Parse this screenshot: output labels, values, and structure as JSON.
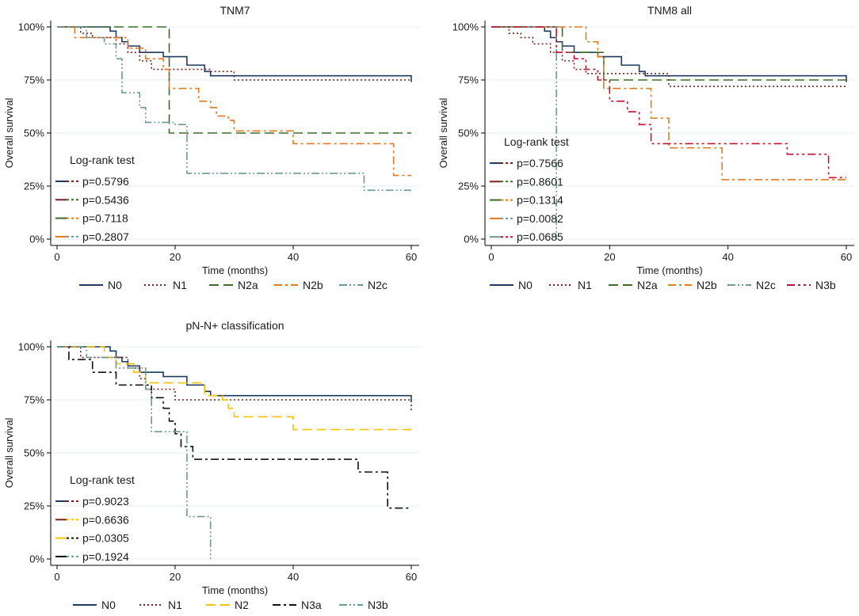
{
  "chart_data": [
    {
      "type": "line",
      "title": "TNM7",
      "xlabel": "Time (months)",
      "ylabel": "Overall survival",
      "xlim": [
        0,
        60
      ],
      "ylim": [
        0,
        100
      ],
      "xticks": [
        "0",
        "20",
        "40",
        "60"
      ],
      "yticks": [
        "0%",
        "25%",
        "50%",
        "75%",
        "100%"
      ],
      "logrank_title": "Log-rank test",
      "logrank": [
        {
          "label": "p=0.5796",
          "series": [
            "N0",
            "N1"
          ]
        },
        {
          "label": "p=0.5436",
          "series": [
            "N1",
            "N2a"
          ]
        },
        {
          "label": "p=0.7118",
          "series": [
            "N2a",
            "N2b"
          ]
        },
        {
          "label": "p=0.2807",
          "series": [
            "N2b",
            "N2c"
          ]
        }
      ],
      "series": [
        {
          "name": "N0",
          "color": "#1f3a5f",
          "dash": "",
          "points": [
            [
              0,
              100
            ],
            [
              8,
              100
            ],
            [
              9,
              98
            ],
            [
              10,
              95
            ],
            [
              11,
              93
            ],
            [
              12,
              91
            ],
            [
              14,
              88
            ],
            [
              18,
              86
            ],
            [
              22,
              82
            ],
            [
              25,
              79
            ],
            [
              26,
              77
            ],
            [
              57,
              77
            ],
            [
              60,
              74
            ]
          ]
        },
        {
          "name": "N1",
          "color": "#7a1f1f",
          "dash": "2,3",
          "points": [
            [
              0,
              100
            ],
            [
              4,
              97
            ],
            [
              6,
              95
            ],
            [
              10,
              92
            ],
            [
              12,
              88
            ],
            [
              14,
              84
            ],
            [
              16,
              80
            ],
            [
              26,
              79
            ],
            [
              30,
              75
            ],
            [
              60,
              75
            ]
          ]
        },
        {
          "name": "N2a",
          "color": "#3d6b2a",
          "dash": "12,6",
          "points": [
            [
              0,
              100
            ],
            [
              19,
              100
            ],
            [
              19,
              50
            ],
            [
              60,
              50
            ]
          ]
        },
        {
          "name": "N2b",
          "color": "#e07b22",
          "dash": "10,4,3,4",
          "points": [
            [
              0,
              100
            ],
            [
              3,
              95
            ],
            [
              10,
              95
            ],
            [
              12,
              90
            ],
            [
              15,
              85
            ],
            [
              18,
              80
            ],
            [
              19,
              71
            ],
            [
              22,
              71
            ],
            [
              24,
              65
            ],
            [
              26,
              62
            ],
            [
              27,
              58
            ],
            [
              29,
              56
            ],
            [
              30,
              51
            ],
            [
              39,
              51
            ],
            [
              40,
              45
            ],
            [
              56,
              45
            ],
            [
              57,
              30
            ],
            [
              60,
              30
            ]
          ]
        },
        {
          "name": "N2c",
          "color": "#6a9a93",
          "dash": "10,3,2,3,2,3",
          "points": [
            [
              0,
              100
            ],
            [
              5,
              95
            ],
            [
              8,
              92
            ],
            [
              10,
              85
            ],
            [
              11,
              69
            ],
            [
              14,
              62
            ],
            [
              15,
              55
            ],
            [
              20,
              54
            ],
            [
              22,
              31
            ],
            [
              51,
              31
            ],
            [
              52,
              23
            ],
            [
              60,
              23
            ]
          ]
        }
      ]
    },
    {
      "type": "line",
      "title": "TNM8 all",
      "xlabel": "Time (months)",
      "ylabel": "Overall survival",
      "xlim": [
        0,
        60
      ],
      "ylim": [
        0,
        100
      ],
      "xticks": [
        "0",
        "20",
        "40",
        "60"
      ],
      "yticks": [
        "0%",
        "25%",
        "50%",
        "75%",
        "100%"
      ],
      "logrank_title": "Log-rank test",
      "logrank": [
        {
          "label": "p=0.7566",
          "series": [
            "N0",
            "N1"
          ]
        },
        {
          "label": "p=0.8601",
          "series": [
            "N1",
            "N2a"
          ]
        },
        {
          "label": "p=0.1314",
          "series": [
            "N2a",
            "N2b"
          ]
        },
        {
          "label": "p=0.0082",
          "series": [
            "N2b",
            "N2c"
          ]
        },
        {
          "label": "p=0.0685",
          "series": [
            "N2c",
            "N3b"
          ]
        }
      ],
      "series": [
        {
          "name": "N0",
          "color": "#1f3a5f",
          "dash": "",
          "points": [
            [
              0,
              100
            ],
            [
              8,
              100
            ],
            [
              9,
              98
            ],
            [
              10,
              95
            ],
            [
              11,
              93
            ],
            [
              12,
              91
            ],
            [
              14,
              88
            ],
            [
              18,
              86
            ],
            [
              22,
              82
            ],
            [
              25,
              79
            ],
            [
              26,
              77
            ],
            [
              57,
              77
            ],
            [
              60,
              74
            ]
          ]
        },
        {
          "name": "N1",
          "color": "#7a1f1f",
          "dash": "2,3",
          "points": [
            [
              0,
              100
            ],
            [
              3,
              97
            ],
            [
              5,
              95
            ],
            [
              7,
              92
            ],
            [
              10,
              88
            ],
            [
              12,
              84
            ],
            [
              14,
              80
            ],
            [
              16,
              78
            ],
            [
              30,
              76
            ],
            [
              30,
              72
            ],
            [
              60,
              72
            ]
          ]
        },
        {
          "name": "N2a",
          "color": "#3d6b2a",
          "dash": "12,6",
          "points": [
            [
              0,
              100
            ],
            [
              11,
              100
            ],
            [
              12,
              88
            ],
            [
              19,
              85
            ],
            [
              19,
              75
            ],
            [
              60,
              75
            ]
          ]
        },
        {
          "name": "N2b",
          "color": "#e07b22",
          "dash": "10,4,3,4",
          "points": [
            [
              0,
              100
            ],
            [
              15,
              100
            ],
            [
              16,
              93
            ],
            [
              18,
              86
            ],
            [
              19,
              71
            ],
            [
              27,
              71
            ],
            [
              27,
              57
            ],
            [
              29,
              57
            ],
            [
              30,
              43
            ],
            [
              39,
              43
            ],
            [
              39,
              28
            ],
            [
              60,
              28
            ]
          ]
        },
        {
          "name": "N2c",
          "color": "#6a9a93",
          "dash": "10,3,2,3,2,3",
          "points": [
            [
              0,
              100
            ],
            [
              11,
              100
            ],
            [
              11,
              0
            ]
          ]
        },
        {
          "name": "N3b",
          "color": "#c8102e",
          "dash": "10,4,3,4,3,4",
          "points": [
            [
              0,
              100
            ],
            [
              11,
              88
            ],
            [
              14,
              85
            ],
            [
              16,
              80
            ],
            [
              18,
              75
            ],
            [
              20,
              65
            ],
            [
              23,
              60
            ],
            [
              25,
              54
            ],
            [
              27,
              45
            ],
            [
              50,
              45
            ],
            [
              50,
              40
            ],
            [
              56,
              40
            ],
            [
              57,
              29
            ],
            [
              60,
              29
            ]
          ]
        }
      ]
    },
    {
      "type": "line",
      "title": "pN-N+ classification",
      "xlabel": "Time (months)",
      "ylabel": "Overall survival",
      "xlim": [
        0,
        60
      ],
      "ylim": [
        0,
        100
      ],
      "xticks": [
        "0",
        "20",
        "40",
        "60"
      ],
      "yticks": [
        "0%",
        "25%",
        "50%",
        "75%",
        "100%"
      ],
      "logrank_title": "Log-rank test",
      "logrank": [
        {
          "label": "p=0.9023",
          "series": [
            "N0",
            "N1"
          ]
        },
        {
          "label": "p=0.6636",
          "series": [
            "N1",
            "N2"
          ]
        },
        {
          "label": "p=0.0305",
          "series": [
            "N2",
            "N3a"
          ]
        },
        {
          "label": "p=0.1924",
          "series": [
            "N3a",
            "N3b"
          ]
        }
      ],
      "series": [
        {
          "name": "N0",
          "color": "#1f3a5f",
          "dash": "",
          "points": [
            [
              0,
              100
            ],
            [
              8,
              100
            ],
            [
              9,
              98
            ],
            [
              10,
              95
            ],
            [
              11,
              93
            ],
            [
              12,
              91
            ],
            [
              14,
              88
            ],
            [
              18,
              86
            ],
            [
              22,
              82
            ],
            [
              25,
              79
            ],
            [
              26,
              77
            ],
            [
              57,
              77
            ],
            [
              60,
              74
            ]
          ]
        },
        {
          "name": "N1",
          "color": "#7a1f1f",
          "dash": "2,3",
          "points": [
            [
              0,
              100
            ],
            [
              4,
              95
            ],
            [
              10,
              95
            ],
            [
              12,
              90
            ],
            [
              14,
              85
            ],
            [
              15,
              80
            ],
            [
              19,
              80
            ],
            [
              20,
              75
            ],
            [
              60,
              75
            ],
            [
              60,
              70
            ]
          ]
        },
        {
          "name": "N2",
          "color": "#f5c400",
          "dash": "12,6",
          "points": [
            [
              0,
              100
            ],
            [
              8,
              95
            ],
            [
              10,
              92
            ],
            [
              13,
              88
            ],
            [
              15,
              83
            ],
            [
              21,
              83
            ],
            [
              25,
              77
            ],
            [
              28,
              75
            ],
            [
              29,
              71
            ],
            [
              30,
              67
            ],
            [
              39,
              67
            ],
            [
              40,
              61
            ],
            [
              60,
              61
            ]
          ]
        },
        {
          "name": "N3a",
          "color": "#111111",
          "dash": "10,4,3,4",
          "points": [
            [
              0,
              100
            ],
            [
              2,
              94
            ],
            [
              5,
              94
            ],
            [
              6,
              88
            ],
            [
              9,
              88
            ],
            [
              10,
              82
            ],
            [
              15,
              82
            ],
            [
              16,
              76
            ],
            [
              18,
              71
            ],
            [
              19,
              65
            ],
            [
              20,
              59
            ],
            [
              21,
              53
            ],
            [
              23,
              47
            ],
            [
              50,
              47
            ],
            [
              51,
              41
            ],
            [
              55,
              41
            ],
            [
              56,
              24
            ],
            [
              60,
              24
            ]
          ]
        },
        {
          "name": "N3b",
          "color": "#6a9a93",
          "dash": "10,3,2,3,2,3",
          "points": [
            [
              0,
              100
            ],
            [
              5,
              95
            ],
            [
              10,
              90
            ],
            [
              15,
              80
            ],
            [
              16,
              60
            ],
            [
              22,
              60
            ],
            [
              22,
              20
            ],
            [
              26,
              20
            ],
            [
              26,
              0
            ]
          ]
        }
      ]
    }
  ]
}
